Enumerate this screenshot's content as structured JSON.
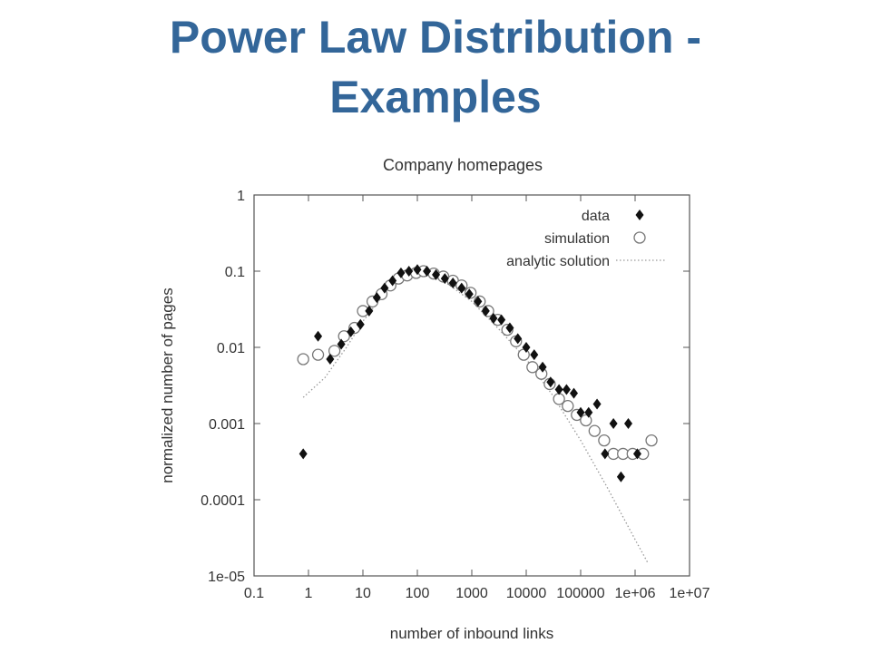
{
  "slide": {
    "title_line1": "Power Law Distribution -",
    "title_line2": "Examples"
  },
  "colors": {
    "title": "#336699",
    "data_marker": "#111111",
    "simulation_marker": "#777777",
    "analytic_line": "#999999"
  },
  "chart_data": {
    "type": "scatter",
    "title": "Company homepages",
    "xlabel": "number of inbound links",
    "ylabel": "normalized number of pages",
    "xscale": "log",
    "yscale": "log",
    "xlim": [
      0.1,
      10000000
    ],
    "ylim": [
      1e-05,
      1
    ],
    "x_ticks": [
      0.1,
      1,
      10,
      100,
      1000,
      10000,
      100000,
      1000000,
      10000000
    ],
    "x_tick_labels": [
      "0.1",
      "1",
      "10",
      "100",
      "1000",
      "10000",
      "100000",
      "1e+06",
      "1e+07"
    ],
    "y_ticks": [
      1e-05,
      0.0001,
      0.001,
      0.01,
      0.1,
      1
    ],
    "y_tick_labels": [
      "1e-05",
      "0.0001",
      "0.001",
      "0.01",
      "0.1",
      "1"
    ],
    "legend_position": "top-right",
    "series": [
      {
        "name": "data",
        "marker": "filled-diamond",
        "points": [
          [
            0.8,
            0.0004
          ],
          [
            1.5,
            0.014
          ],
          [
            2.5,
            0.007
          ],
          [
            4,
            0.011
          ],
          [
            6,
            0.016
          ],
          [
            9,
            0.02
          ],
          [
            13,
            0.03
          ],
          [
            18,
            0.045
          ],
          [
            25,
            0.06
          ],
          [
            35,
            0.075
          ],
          [
            50,
            0.095
          ],
          [
            70,
            0.1
          ],
          [
            100,
            0.105
          ],
          [
            150,
            0.1
          ],
          [
            220,
            0.09
          ],
          [
            320,
            0.08
          ],
          [
            450,
            0.07
          ],
          [
            650,
            0.06
          ],
          [
            900,
            0.05
          ],
          [
            1300,
            0.04
          ],
          [
            1800,
            0.03
          ],
          [
            2500,
            0.024
          ],
          [
            3500,
            0.023
          ],
          [
            5000,
            0.018
          ],
          [
            7000,
            0.013
          ],
          [
            10000,
            0.01
          ],
          [
            14000,
            0.008
          ],
          [
            20000,
            0.0055
          ],
          [
            28000,
            0.0035
          ],
          [
            40000,
            0.0028
          ],
          [
            55000,
            0.0028
          ],
          [
            75000,
            0.0025
          ],
          [
            100000,
            0.0014
          ],
          [
            140000,
            0.0014
          ],
          [
            200000,
            0.0018
          ],
          [
            280000,
            0.0004
          ],
          [
            400000,
            0.001
          ],
          [
            550000,
            0.0002
          ],
          [
            750000,
            0.001
          ],
          [
            1100000,
            0.0004
          ]
        ]
      },
      {
        "name": "simulation",
        "marker": "open-circle",
        "points": [
          [
            0.8,
            0.007
          ],
          [
            1.5,
            0.008
          ],
          [
            3,
            0.009
          ],
          [
            4.5,
            0.014
          ],
          [
            7,
            0.018
          ],
          [
            10,
            0.03
          ],
          [
            15,
            0.04
          ],
          [
            22,
            0.05
          ],
          [
            32,
            0.065
          ],
          [
            45,
            0.08
          ],
          [
            65,
            0.088
          ],
          [
            95,
            0.095
          ],
          [
            130,
            0.1
          ],
          [
            200,
            0.093
          ],
          [
            300,
            0.085
          ],
          [
            450,
            0.075
          ],
          [
            650,
            0.065
          ],
          [
            950,
            0.052
          ],
          [
            1400,
            0.04
          ],
          [
            2000,
            0.03
          ],
          [
            3000,
            0.023
          ],
          [
            4500,
            0.017
          ],
          [
            6500,
            0.012
          ],
          [
            9000,
            0.008
          ],
          [
            13000,
            0.0055
          ],
          [
            19000,
            0.0045
          ],
          [
            27000,
            0.0033
          ],
          [
            40000,
            0.0021
          ],
          [
            58000,
            0.0017
          ],
          [
            85000,
            0.0013
          ],
          [
            125000,
            0.0011
          ],
          [
            180000,
            0.0008
          ],
          [
            270000,
            0.0006
          ],
          [
            400000,
            0.0004
          ],
          [
            600000,
            0.0004
          ],
          [
            900000,
            0.0004
          ],
          [
            1400000,
            0.0004
          ],
          [
            2000000,
            0.0006
          ]
        ]
      },
      {
        "name": "analytic solution",
        "marker": "dotted-line",
        "points": [
          [
            0.8,
            0.0022
          ],
          [
            2,
            0.004
          ],
          [
            5,
            0.01
          ],
          [
            10,
            0.022
          ],
          [
            30,
            0.06
          ],
          [
            100,
            0.105
          ],
          [
            300,
            0.075
          ],
          [
            1000,
            0.04
          ],
          [
            3000,
            0.018
          ],
          [
            10000,
            0.007
          ],
          [
            30000,
            0.0024
          ],
          [
            100000,
            0.0006
          ],
          [
            300000,
            0.00015
          ],
          [
            1000000,
            3e-05
          ],
          [
            1700000,
            1.5e-05
          ]
        ]
      }
    ]
  }
}
